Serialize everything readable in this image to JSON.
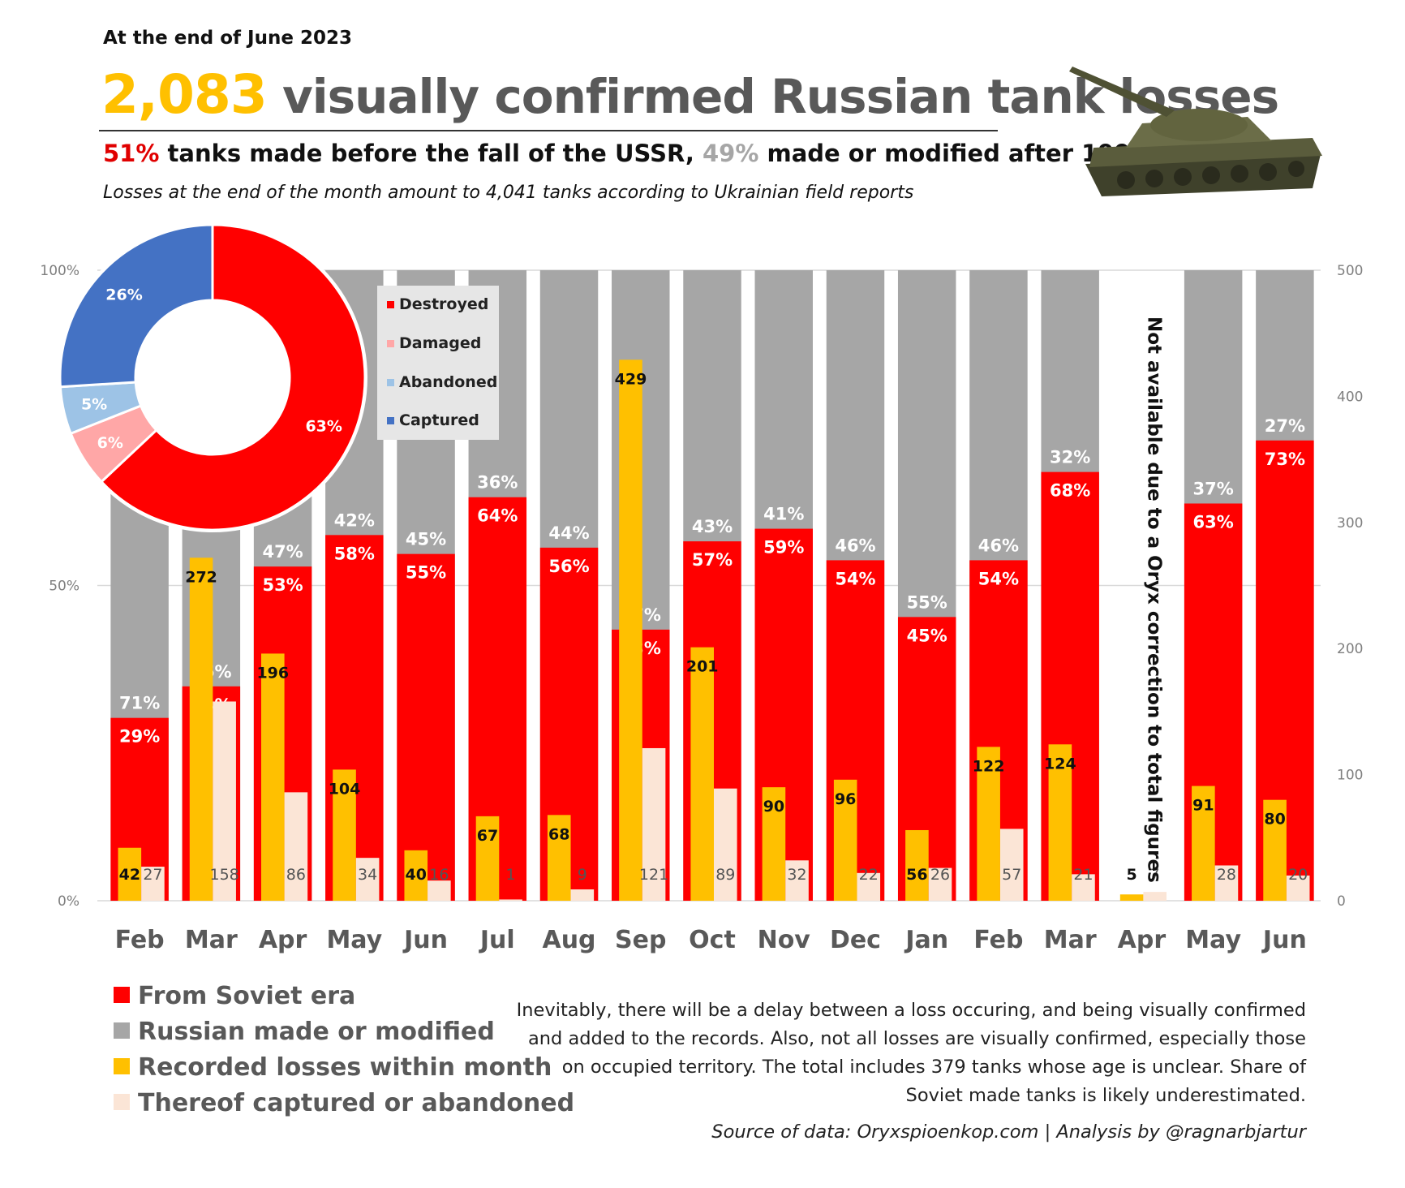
{
  "header": {
    "date_label": "At the end of June 2023",
    "headline_number": "2,083",
    "headline_text": "visually confirmed Russian tank losses",
    "subhead_pct1": "51%",
    "subhead_text1": "tanks made before the fall of the USSR,",
    "subhead_pct2": "49%",
    "subhead_text2": "made or modified after 1991",
    "note": "Losses at the end of the month amount to 4,041 tanks according to Ukrainian field reports"
  },
  "colors": {
    "soviet": "#FF0000",
    "russian": "#A6A6A6",
    "recorded": "#FFC000",
    "captured": "#FBE5D6",
    "destroyed": "#FF0000",
    "damaged": "#FFA7A7",
    "abandoned": "#9DC3E6",
    "captured_pie": "#4472C4"
  },
  "chart_data": [
    {
      "type": "bar",
      "categories": [
        "Feb",
        "Mar",
        "Apr",
        "May",
        "Jun",
        "Jul",
        "Aug",
        "Sep",
        "Oct",
        "Nov",
        "Dec",
        "Jan",
        "Feb",
        "Mar",
        "Apr",
        "May",
        "Jun"
      ],
      "y_left_ticks": [
        "0%",
        "50%",
        "100%"
      ],
      "y_right_ticks": [
        "0",
        "100",
        "200",
        "300",
        "400",
        "500"
      ],
      "ylim_left": [
        0,
        100
      ],
      "ylim_right": [
        0,
        500
      ],
      "series": [
        {
          "name": "From Soviet era",
          "axis": "left_percent",
          "values": [
            29,
            34,
            53,
            58,
            55,
            64,
            56,
            43,
            57,
            59,
            54,
            45,
            54,
            68,
            null,
            63,
            73
          ],
          "labels": [
            "29%",
            "34%",
            "53%",
            "58%",
            "55%",
            "64%",
            "56%",
            "43%",
            "57%",
            "59%",
            "54%",
            "45%",
            "54%",
            "68%",
            "",
            "63%",
            "73%"
          ]
        },
        {
          "name": "Russian made or modified",
          "axis": "left_percent",
          "values": [
            71,
            66,
            47,
            42,
            45,
            36,
            44,
            57,
            43,
            41,
            46,
            55,
            46,
            32,
            null,
            37,
            27
          ],
          "labels": [
            "71%",
            "66%",
            "47%",
            "42%",
            "45%",
            "36%",
            "44%",
            "57%",
            "43%",
            "41%",
            "46%",
            "55%",
            "46%",
            "32%",
            "",
            "37%",
            "27%"
          ]
        },
        {
          "name": "Recorded losses within month",
          "axis": "right_count",
          "values": [
            42,
            272,
            196,
            104,
            40,
            67,
            68,
            429,
            201,
            90,
            96,
            56,
            122,
            124,
            5,
            91,
            80
          ],
          "labels": [
            "42",
            "272",
            "196",
            "104",
            "40",
            "67",
            "68",
            "429",
            "201",
            "90",
            "96",
            "56",
            "122",
            "124",
            "5",
            "91",
            "80"
          ]
        },
        {
          "name": "Thereof captured or abandoned",
          "axis": "right_count",
          "values": [
            27,
            158,
            86,
            34,
            16,
            1,
            9,
            121,
            89,
            32,
            22,
            26,
            57,
            21,
            7,
            28,
            20
          ],
          "labels": [
            "27",
            "158",
            "86",
            "34",
            "16",
            "1",
            "9",
            "121",
            "89",
            "32",
            "22",
            "26",
            "57",
            "21",
            "7",
            "28",
            "20"
          ]
        }
      ],
      "legend": [
        "From Soviet era",
        "Russian made or modified",
        "Recorded losses within month",
        "Thereof captured or abandoned"
      ],
      "annotation": "Not available due to a Oryx correction to total figures",
      "grid": true
    },
    {
      "type": "pie",
      "donut": true,
      "categories": [
        "Destroyed",
        "Damaged",
        "Abandoned",
        "Captured"
      ],
      "values": [
        63,
        6,
        5,
        26
      ],
      "labels": [
        "63%",
        "6%",
        "5%",
        "26%"
      ],
      "legend_placement": "right"
    }
  ],
  "footnote": "Inevitably, there will be a delay between a loss occuring, and being visually confirmed and added to the records. Also, not all losses are visually confirmed, especially those on occupied territory. The total includes 379 tanks whose age is unclear. Share of Soviet made tanks is likely underestimated.",
  "source": "Source of data: Oryxspioenkop.com | Analysis by @ragnarbjartur"
}
